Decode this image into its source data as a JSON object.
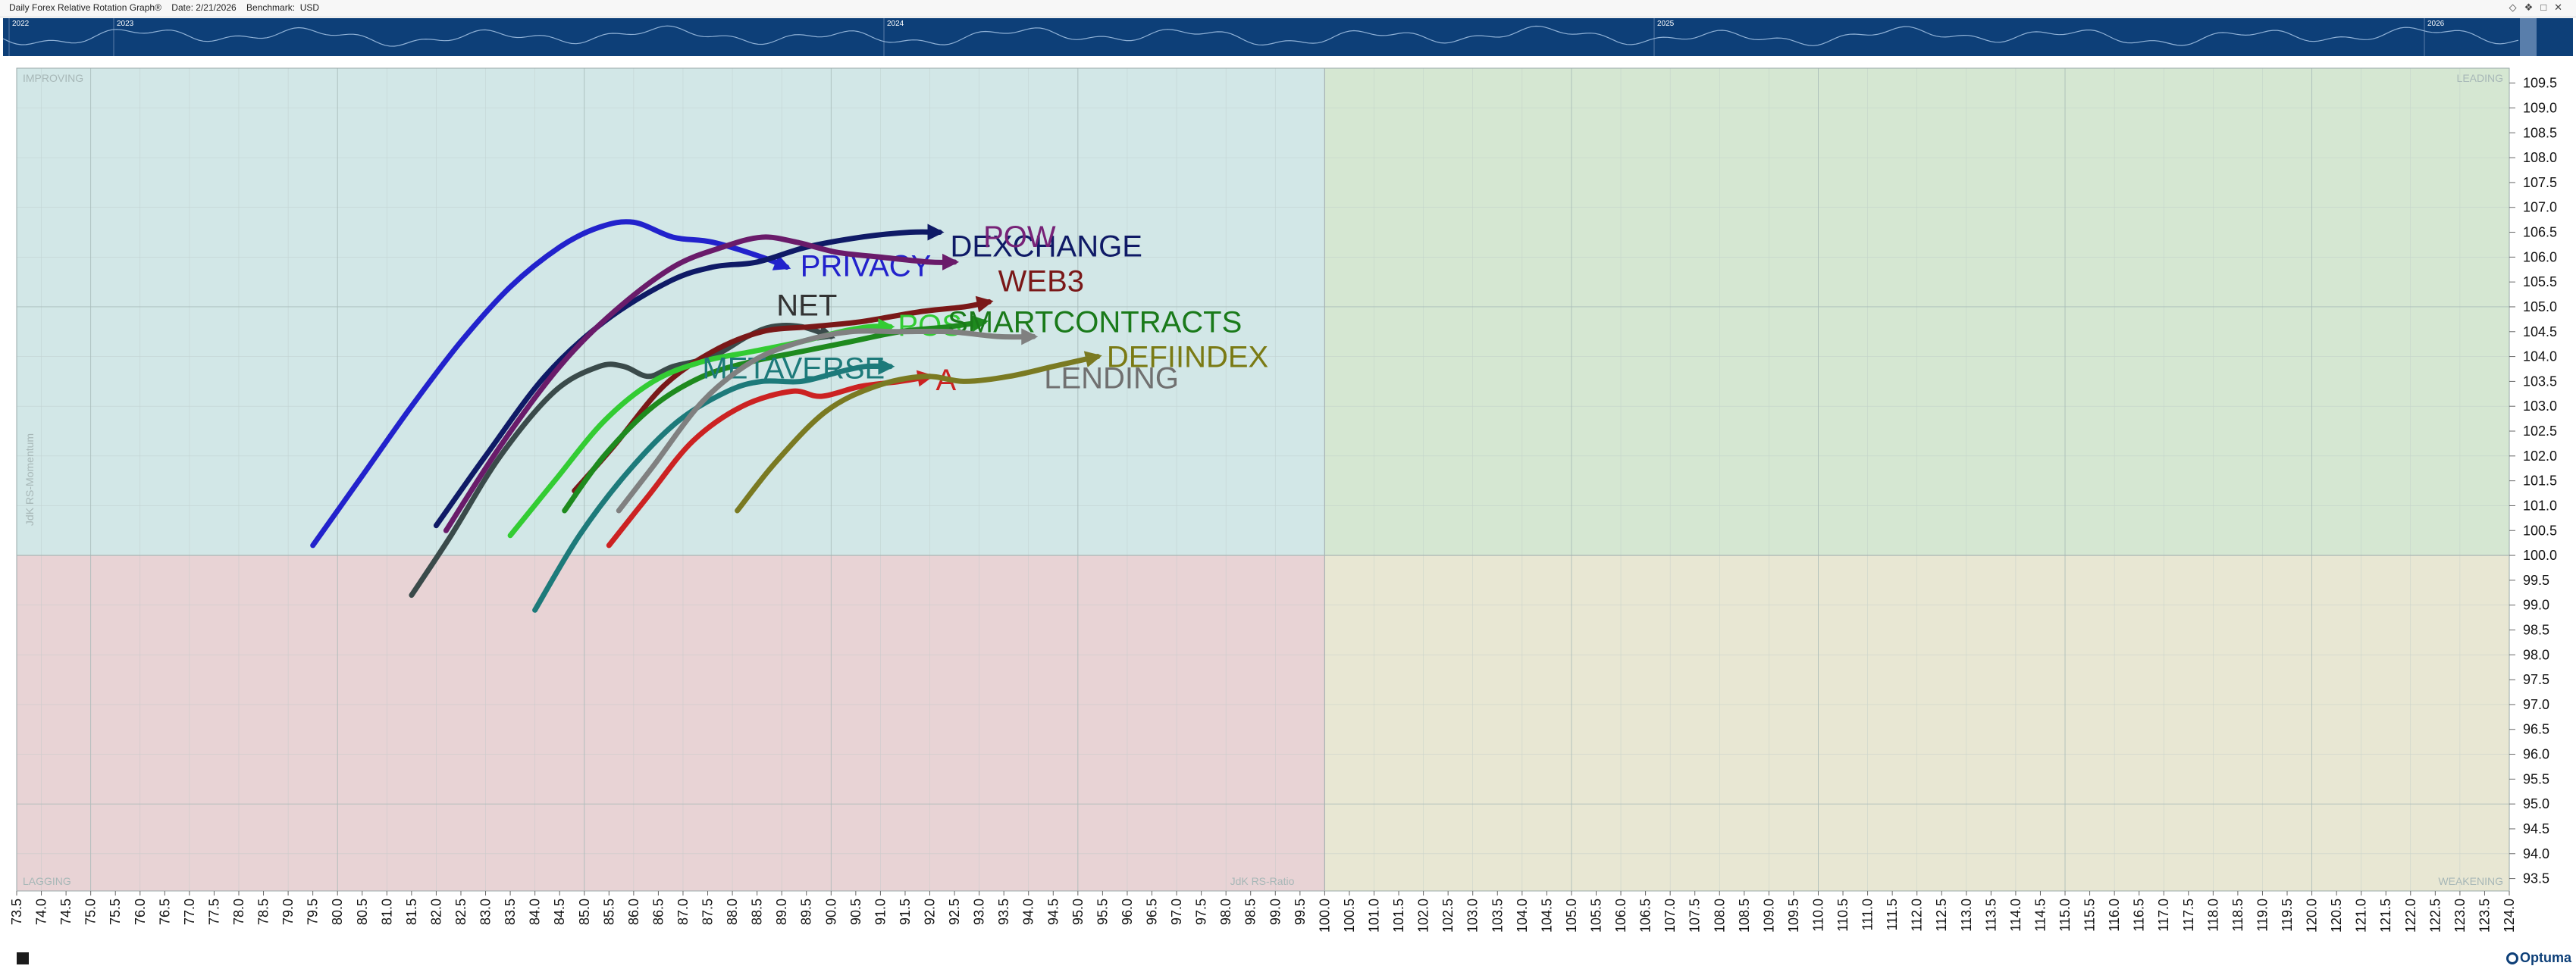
{
  "header": {
    "title": "Daily Forex Relative Rotation Graph®",
    "date_label": "Date: 2/21/2026",
    "benchmark_label": "Benchmark:",
    "benchmark": "USD",
    "icons": [
      "diamond-icon",
      "pin-icon",
      "restore-icon",
      "close-icon"
    ]
  },
  "timeline": {
    "years": [
      "2022",
      "2023",
      "2024",
      "2025",
      "2026"
    ]
  },
  "quadrants": {
    "improving": "IMPROVING",
    "leading": "LEADING",
    "lagging": "LAGGING",
    "weakening": "WEAKENING"
  },
  "colors": {
    "improving": "#d2e7e7",
    "leading": "#d5e7d2",
    "lagging": "#e8d3d5",
    "weakening": "#e8e7d3",
    "timeline_bg": "#0d3f78"
  },
  "footer": {
    "logo": "Optuma"
  },
  "chart_data": {
    "type": "scatter",
    "title": "Daily Forex Relative Rotation Graph®",
    "xlabel": "JdK RS-Ratio",
    "ylabel": "JdK RS-Momentum",
    "xlim": [
      73.5,
      124.0
    ],
    "ylim": [
      93.25,
      109.8
    ],
    "x_tick_step": 0.5,
    "y_tick_step": 0.5,
    "grid": true,
    "series": [
      {
        "name": "PRIVACY",
        "color": "#2222cc",
        "label_color": "#2222cc",
        "points": [
          [
            79.5,
            100.2
          ],
          [
            80.5,
            101.6
          ],
          [
            81.5,
            103.0
          ],
          [
            82.5,
            104.3
          ],
          [
            83.5,
            105.4
          ],
          [
            84.5,
            106.2
          ],
          [
            85.3,
            106.6
          ],
          [
            86.0,
            106.7
          ],
          [
            86.8,
            106.4
          ],
          [
            87.6,
            106.3
          ],
          [
            88.6,
            106.0
          ],
          [
            89.1,
            105.8
          ]
        ]
      },
      {
        "name": "DEXCHANGE",
        "color": "#0f1a66",
        "label_color": "#0f1a66",
        "points": [
          [
            82.0,
            100.6
          ],
          [
            83.0,
            102.0
          ],
          [
            84.2,
            103.6
          ],
          [
            85.4,
            104.7
          ],
          [
            86.7,
            105.5
          ],
          [
            87.6,
            105.8
          ],
          [
            88.5,
            105.9
          ],
          [
            89.5,
            106.2
          ],
          [
            90.6,
            106.4
          ],
          [
            91.6,
            106.5
          ],
          [
            92.2,
            106.5
          ]
        ]
      },
      {
        "name": "POW",
        "color": "#6a1b6a",
        "label_color": "#772277",
        "points": [
          [
            82.2,
            100.5
          ],
          [
            83.3,
            102.2
          ],
          [
            84.5,
            103.8
          ],
          [
            85.6,
            104.9
          ],
          [
            86.8,
            105.8
          ],
          [
            87.8,
            106.2
          ],
          [
            88.6,
            106.4
          ],
          [
            89.3,
            106.3
          ],
          [
            90.1,
            106.1
          ],
          [
            91.0,
            106.0
          ],
          [
            92.0,
            105.9
          ],
          [
            92.5,
            105.9
          ]
        ]
      },
      {
        "name": "NET",
        "color": "#3a4a4a",
        "label_color": "#333333",
        "points": [
          [
            81.5,
            99.2
          ],
          [
            82.3,
            100.4
          ],
          [
            83.3,
            102.0
          ],
          [
            84.4,
            103.3
          ],
          [
            85.3,
            103.8
          ],
          [
            85.8,
            103.8
          ],
          [
            86.3,
            103.6
          ],
          [
            86.8,
            103.8
          ],
          [
            87.6,
            104.0
          ],
          [
            88.3,
            104.4
          ],
          [
            88.8,
            104.6
          ],
          [
            89.4,
            104.6
          ],
          [
            90.0,
            104.4
          ]
        ]
      },
      {
        "name": "WEB3",
        "color": "#7a1818",
        "label_color": "#7a1818",
        "points": [
          [
            84.8,
            101.3
          ],
          [
            85.6,
            102.2
          ],
          [
            86.6,
            103.4
          ],
          [
            87.6,
            104.1
          ],
          [
            88.6,
            104.5
          ],
          [
            89.6,
            104.6
          ],
          [
            90.6,
            104.7
          ],
          [
            91.8,
            104.9
          ],
          [
            92.7,
            105.0
          ],
          [
            93.2,
            105.1
          ]
        ]
      },
      {
        "name": "POS",
        "color": "#33cc33",
        "label_color": "#33cc33",
        "points": [
          [
            83.5,
            100.4
          ],
          [
            84.4,
            101.5
          ],
          [
            85.4,
            102.7
          ],
          [
            86.4,
            103.5
          ],
          [
            87.4,
            103.9
          ],
          [
            88.4,
            104.1
          ],
          [
            89.4,
            104.3
          ],
          [
            90.2,
            104.5
          ],
          [
            90.8,
            104.6
          ],
          [
            91.2,
            104.6
          ]
        ]
      },
      {
        "name": "SMARTCONTRACTS",
        "color": "#1e8a1e",
        "label_color": "#1a7a1a",
        "points": [
          [
            84.6,
            100.9
          ],
          [
            85.4,
            102.0
          ],
          [
            86.4,
            103.0
          ],
          [
            87.4,
            103.6
          ],
          [
            88.4,
            103.9
          ],
          [
            89.4,
            104.1
          ],
          [
            90.4,
            104.3
          ],
          [
            91.4,
            104.5
          ],
          [
            92.4,
            104.6
          ],
          [
            93.1,
            104.7
          ]
        ]
      },
      {
        "name": "METAVERSE",
        "color": "#1d7a7a",
        "label_color": "#1d7a7a",
        "points": [
          [
            84.0,
            98.9
          ],
          [
            84.9,
            100.4
          ],
          [
            85.9,
            101.7
          ],
          [
            86.9,
            102.7
          ],
          [
            87.9,
            103.3
          ],
          [
            88.6,
            103.5
          ],
          [
            89.4,
            103.5
          ],
          [
            90.2,
            103.7
          ],
          [
            90.7,
            103.8
          ],
          [
            91.2,
            103.8
          ]
        ]
      },
      {
        "name": "LENDING",
        "color": "#808080",
        "label_color": "#707070",
        "points": [
          [
            85.7,
            100.9
          ],
          [
            86.4,
            101.8
          ],
          [
            87.4,
            103.1
          ],
          [
            88.4,
            103.9
          ],
          [
            89.4,
            104.3
          ],
          [
            90.4,
            104.5
          ],
          [
            91.4,
            104.5
          ],
          [
            92.4,
            104.5
          ],
          [
            93.4,
            104.4
          ],
          [
            94.1,
            104.4
          ]
        ]
      },
      {
        "name": "A",
        "color": "#cc2222",
        "label_color": "#cc2222",
        "points": [
          [
            85.5,
            100.2
          ],
          [
            86.3,
            101.2
          ],
          [
            87.2,
            102.3
          ],
          [
            88.2,
            103.0
          ],
          [
            89.2,
            103.3
          ],
          [
            89.8,
            103.2
          ],
          [
            90.6,
            103.4
          ],
          [
            91.4,
            103.5
          ],
          [
            92.0,
            103.6
          ]
        ]
      },
      {
        "name": "DEFIINDEX",
        "color": "#7a7a22",
        "label_color": "#7a7a14",
        "points": [
          [
            88.1,
            100.9
          ],
          [
            88.9,
            101.9
          ],
          [
            89.9,
            102.9
          ],
          [
            90.9,
            103.4
          ],
          [
            91.9,
            103.6
          ],
          [
            92.7,
            103.5
          ],
          [
            93.6,
            103.6
          ],
          [
            94.5,
            103.8
          ],
          [
            95.4,
            104.0
          ]
        ]
      }
    ]
  }
}
